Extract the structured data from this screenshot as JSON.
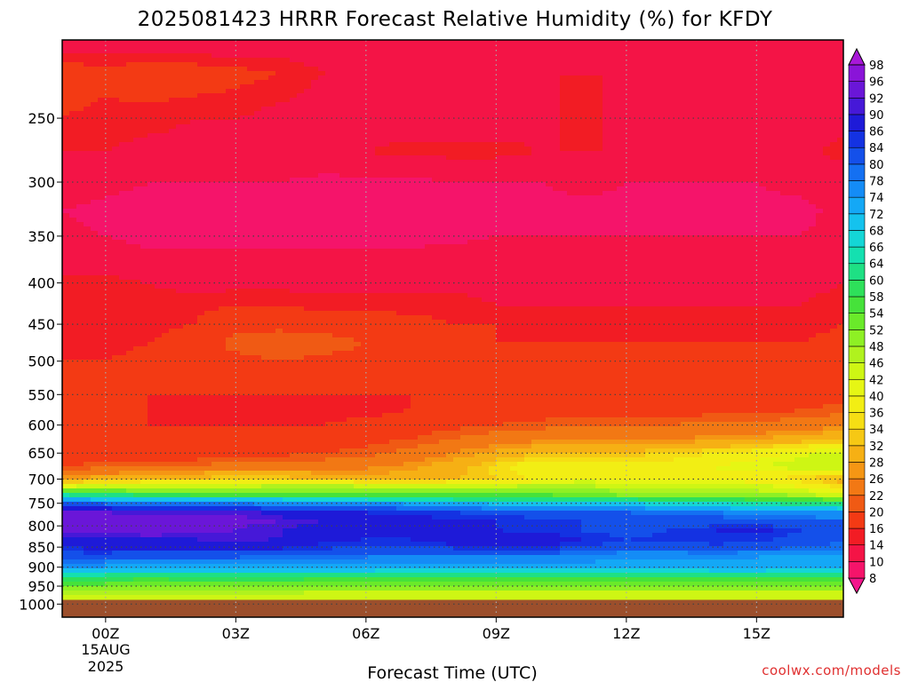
{
  "chart_data": {
    "type": "heatmap",
    "title": "2025081423 HRRR Forecast Relative Humidity (%) for KFDY",
    "xlabel": "Forecast Time (UTC)",
    "ylabel": "",
    "x_ticks": [
      "00Z",
      "03Z",
      "06Z",
      "09Z",
      "12Z",
      "15Z"
    ],
    "x_tick_hours": [
      1,
      4,
      7,
      10,
      13,
      16
    ],
    "x_range_hours": [
      0,
      18
    ],
    "date_label": [
      "15AUG",
      "2025"
    ],
    "y_ticks": [
      250,
      300,
      350,
      400,
      450,
      500,
      550,
      600,
      650,
      700,
      750,
      800,
      850,
      900,
      950,
      1000
    ],
    "y_range_hpa": [
      200,
      1038
    ],
    "y_scale": "log-pressure",
    "grid": true,
    "ground_level_hpa": 988,
    "ground_color": "#9c4f2c",
    "colorbar": {
      "levels": [
        8,
        10,
        14,
        16,
        20,
        22,
        26,
        28,
        32,
        34,
        36,
        40,
        42,
        46,
        48,
        52,
        54,
        58,
        60,
        64,
        66,
        68,
        72,
        74,
        78,
        80,
        84,
        86,
        90,
        92,
        96,
        98
      ],
      "colors": [
        "#f4168c",
        "#f5146a",
        "#f41446",
        "#f21c24",
        "#f33a14",
        "#f05a14",
        "#f27814",
        "#f59614",
        "#f6b014",
        "#f6c814",
        "#f6de14",
        "#f2ee14",
        "#e6f614",
        "#cef614",
        "#b0f21e",
        "#8ef024",
        "#6aea2a",
        "#46e23a",
        "#2ee05a",
        "#1ee084",
        "#14e0b0",
        "#14d6d6",
        "#14c2ee",
        "#14a8f6",
        "#148cf6",
        "#1470f2",
        "#1450ea",
        "#1432e2",
        "#1e1ad8",
        "#4618d8",
        "#6a16d8",
        "#8a14d8",
        "#a818d8"
      ],
      "position": "right"
    },
    "rows": [
      {
        "p": 200,
        "v": [
          12,
          12,
          12,
          11,
          11,
          12,
          12,
          12,
          12,
          12,
          11,
          12,
          12,
          12,
          11,
          12,
          12,
          12,
          12
        ]
      },
      {
        "p": 220,
        "v": [
          18,
          17,
          18,
          18,
          17,
          16,
          14,
          14,
          14,
          14,
          14,
          14,
          14,
          14,
          14,
          14,
          14,
          14,
          14
        ]
      },
      {
        "p": 250,
        "v": [
          16,
          15,
          15,
          14,
          14,
          13,
          12,
          12,
          12,
          12,
          12,
          13,
          15,
          13,
          12,
          12,
          12,
          12,
          13
        ]
      },
      {
        "p": 275,
        "v": [
          14,
          14,
          13,
          13,
          12,
          12,
          13,
          14,
          15,
          15,
          15,
          14,
          14,
          14,
          12,
          12,
          12,
          13,
          15
        ]
      },
      {
        "p": 300,
        "v": [
          12,
          11,
          10,
          10,
          10,
          10,
          9,
          9,
          9,
          10,
          10,
          10,
          11,
          10,
          10,
          10,
          10,
          11,
          12
        ]
      },
      {
        "p": 325,
        "v": [
          10,
          9,
          9,
          9,
          9,
          9,
          9,
          9,
          9,
          9,
          9,
          9,
          9,
          9,
          9,
          9,
          9,
          9,
          11
        ]
      },
      {
        "p": 350,
        "v": [
          11,
          10,
          9,
          9,
          9,
          9,
          9,
          9,
          9,
          9,
          10,
          10,
          10,
          10,
          10,
          10,
          10,
          10,
          11
        ]
      },
      {
        "p": 375,
        "v": [
          12,
          12,
          11,
          11,
          11,
          11,
          11,
          11,
          11,
          12,
          12,
          12,
          12,
          12,
          12,
          12,
          12,
          12,
          13
        ]
      },
      {
        "p": 400,
        "v": [
          15,
          15,
          14,
          13,
          13,
          13,
          13,
          13,
          13,
          13,
          13,
          13,
          13,
          13,
          13,
          13,
          13,
          13,
          14
        ]
      },
      {
        "p": 425,
        "v": [
          15,
          15,
          15,
          15,
          16,
          16,
          15,
          15,
          15,
          15,
          14,
          14,
          14,
          14,
          14,
          14,
          14,
          14,
          15
        ]
      },
      {
        "p": 450,
        "v": [
          14,
          14,
          15,
          16,
          19,
          19,
          18,
          18,
          17,
          16,
          16,
          15,
          15,
          15,
          15,
          15,
          15,
          15,
          16
        ]
      },
      {
        "p": 475,
        "v": [
          15,
          15,
          16,
          18,
          21,
          22,
          22,
          20,
          18,
          17,
          16,
          16,
          16,
          16,
          16,
          16,
          16,
          16,
          17
        ]
      },
      {
        "p": 500,
        "v": [
          16,
          16,
          17,
          18,
          19,
          20,
          19,
          18,
          17,
          17,
          17,
          17,
          17,
          17,
          17,
          17,
          17,
          17,
          18
        ]
      },
      {
        "p": 550,
        "v": [
          17,
          16,
          16,
          16,
          16,
          16,
          16,
          16,
          16,
          17,
          17,
          17,
          17,
          17,
          17,
          17,
          18,
          18,
          19
        ]
      },
      {
        "p": 575,
        "v": [
          16,
          16,
          16,
          15,
          15,
          15,
          15,
          15,
          16,
          16,
          17,
          18,
          18,
          18,
          18,
          19,
          19,
          20,
          21
        ]
      },
      {
        "p": 600,
        "v": [
          16,
          16,
          16,
          16,
          16,
          16,
          16,
          17,
          18,
          19,
          20,
          21,
          22,
          22,
          22,
          23,
          23,
          24,
          25
        ]
      },
      {
        "p": 625,
        "v": [
          17,
          17,
          17,
          17,
          17,
          17,
          18,
          19,
          20,
          22,
          24,
          25,
          25,
          25,
          26,
          27,
          28,
          30,
          32
        ]
      },
      {
        "p": 650,
        "v": [
          18,
          18,
          18,
          18,
          19,
          19,
          20,
          21,
          23,
          26,
          29,
          32,
          33,
          33,
          34,
          36,
          38,
          41,
          44
        ]
      },
      {
        "p": 675,
        "v": [
          20,
          21,
          22,
          22,
          24,
          24,
          24,
          25,
          27,
          30,
          35,
          39,
          38,
          37,
          38,
          40,
          42,
          44,
          46
        ]
      },
      {
        "p": 700,
        "v": [
          28,
          30,
          32,
          33,
          34,
          34,
          31,
          30,
          30,
          32,
          34,
          37,
          40,
          38,
          38,
          39,
          37,
          34,
          30
        ]
      },
      {
        "p": 715,
        "v": [
          42,
          44,
          44,
          45,
          46,
          47,
          48,
          46,
          43,
          44,
          46,
          47,
          47,
          45,
          44,
          46,
          44,
          40,
          34
        ]
      },
      {
        "p": 730,
        "v": [
          62,
          60,
          56,
          55,
          55,
          55,
          54,
          54,
          52,
          52,
          52,
          52,
          51,
          49,
          48,
          49,
          48,
          45,
          42
        ]
      },
      {
        "p": 750,
        "v": [
          80,
          79,
          78,
          77,
          77,
          77,
          75,
          74,
          73,
          72,
          71,
          70,
          68,
          68,
          66,
          66,
          64,
          62,
          60
        ]
      },
      {
        "p": 770,
        "v": [
          92,
          92,
          91,
          91,
          92,
          88,
          86,
          86,
          85,
          84,
          83,
          82,
          80,
          80,
          79,
          78,
          77,
          76,
          74
        ]
      },
      {
        "p": 790,
        "v": [
          94,
          95,
          96,
          94,
          93,
          92,
          90,
          88,
          88,
          87,
          86,
          85,
          84,
          82,
          82,
          82,
          82,
          81,
          80
        ]
      },
      {
        "p": 810,
        "v": [
          93,
          94,
          95,
          93,
          92,
          90,
          88,
          86,
          86,
          86,
          86,
          85,
          84,
          82,
          84,
          86,
          87,
          84,
          82
        ]
      },
      {
        "p": 830,
        "v": [
          88,
          89,
          90,
          90,
          91,
          90,
          87,
          86,
          86,
          88,
          88,
          88,
          86,
          84,
          85,
          86,
          85,
          83,
          80
        ]
      },
      {
        "p": 850,
        "v": [
          86,
          87,
          87,
          88,
          88,
          87,
          85,
          84,
          84,
          85,
          85,
          86,
          84,
          82,
          82,
          83,
          82,
          80,
          79
        ]
      },
      {
        "p": 875,
        "v": [
          82,
          82,
          80,
          80,
          80,
          79,
          78,
          78,
          77,
          77,
          77,
          76,
          76,
          74,
          74,
          75,
          74,
          73,
          73
        ]
      },
      {
        "p": 900,
        "v": [
          74,
          73,
          72,
          72,
          72,
          72,
          72,
          72,
          72,
          72,
          72,
          72,
          72,
          72,
          72,
          72,
          72,
          72,
          72
        ]
      },
      {
        "p": 920,
        "v": [
          66,
          64,
          63,
          64,
          64,
          64,
          63,
          63,
          62,
          62,
          62,
          62,
          62,
          62,
          62,
          63,
          63,
          62,
          62
        ]
      },
      {
        "p": 940,
        "v": [
          56,
          55,
          54,
          55,
          55,
          55,
          54,
          54,
          54,
          54,
          54,
          54,
          54,
          54,
          54,
          54,
          54,
          54,
          54
        ]
      },
      {
        "p": 960,
        "v": [
          50,
          50,
          49,
          49,
          49,
          49,
          48,
          48,
          48,
          48,
          48,
          48,
          48,
          48,
          48,
          48,
          48,
          48,
          48
        ]
      },
      {
        "p": 975,
        "v": [
          46,
          46,
          46,
          45,
          44,
          44,
          44,
          44,
          44,
          44,
          44,
          44,
          44,
          44,
          44,
          44,
          44,
          44,
          44
        ]
      },
      {
        "p": 988,
        "v": [
          44,
          44,
          43,
          42,
          42,
          42,
          42,
          42,
          42,
          42,
          42,
          42,
          42,
          42,
          42,
          42,
          42,
          42,
          42
        ]
      }
    ]
  },
  "credit": "coolwx.com/models",
  "colors": {
    "background": "#ffffff",
    "credit": "#e03030",
    "grid": "#444444"
  }
}
